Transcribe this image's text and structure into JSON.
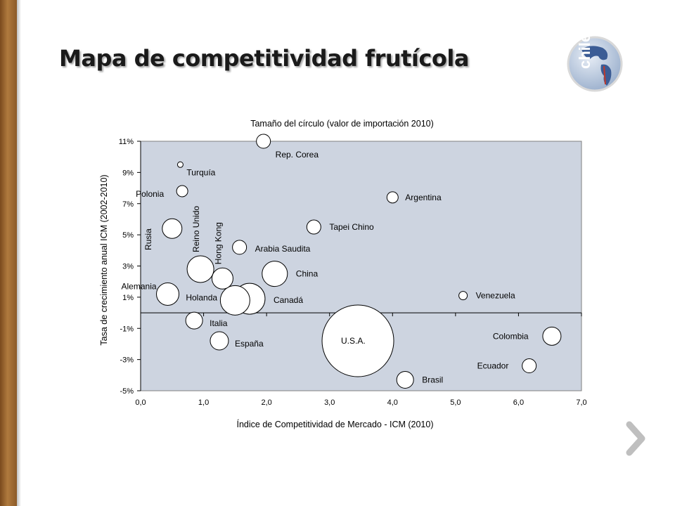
{
  "page": {
    "title": "Mapa de competitividad frutícola"
  },
  "logo": {
    "text": "chile",
    "icon": "chile-globe-logo"
  },
  "nav": {
    "next_icon": "chevron-right-icon",
    "color": "#bfbfbf"
  },
  "colors": {
    "plot_bg": "#cdd4e0",
    "bubble_fill": "#ffffff",
    "bubble_stroke": "#000000"
  },
  "chart_data": {
    "type": "scatter",
    "subtitle": "Tamaño del círculo (valor de importación 2010)",
    "xlabel": "Índice de Competitividad de Mercado - ICM (2010)",
    "ylabel": "Tasa de crecimiento anual ICM (2002-2010)",
    "xlim": [
      0,
      7
    ],
    "ylim": [
      -5,
      11
    ],
    "xticks": [
      "0,0",
      "1,0",
      "2,0",
      "3,0",
      "4,0",
      "5,0",
      "6,0",
      "7,0"
    ],
    "yticks": [
      "-5%",
      "-3%",
      "-1%",
      "1%",
      "3%",
      "5%",
      "7%",
      "9%",
      "11%"
    ],
    "points": [
      {
        "name": "Rep. Corea",
        "x": 1.95,
        "y": 11.0,
        "size": 10
      },
      {
        "name": "Turquía",
        "x": 0.63,
        "y": 9.5,
        "size": 4
      },
      {
        "name": "Polonia",
        "x": 0.66,
        "y": 7.8,
        "size": 8
      },
      {
        "name": "Argentina",
        "x": 4.0,
        "y": 7.4,
        "size": 8
      },
      {
        "name": "Rusia",
        "x": 0.5,
        "y": 5.4,
        "size": 14
      },
      {
        "name": "Tapei Chino",
        "x": 2.75,
        "y": 5.5,
        "size": 10
      },
      {
        "name": "Arabia Saudita",
        "x": 1.57,
        "y": 4.2,
        "size": 10
      },
      {
        "name": "Reino Unido",
        "x": 0.95,
        "y": 2.8,
        "size": 19
      },
      {
        "name": "Hong Kong",
        "x": 1.3,
        "y": 2.2,
        "size": 15
      },
      {
        "name": "China",
        "x": 2.13,
        "y": 2.5,
        "size": 18
      },
      {
        "name": "Alemania",
        "x": 0.43,
        "y": 1.2,
        "size": 16
      },
      {
        "name": "Holanda",
        "x": 1.5,
        "y": 0.8,
        "size": 21
      },
      {
        "name": "Canadá",
        "x": 1.73,
        "y": 0.9,
        "size": 22
      },
      {
        "name": "Venezuela",
        "x": 5.12,
        "y": 1.1,
        "size": 6
      },
      {
        "name": "Italia",
        "x": 0.85,
        "y": -0.5,
        "size": 12
      },
      {
        "name": "España",
        "x": 1.25,
        "y": -1.8,
        "size": 13
      },
      {
        "name": "U.S.A.",
        "x": 3.45,
        "y": -1.8,
        "size": 51
      },
      {
        "name": "Colombia",
        "x": 6.53,
        "y": -1.5,
        "size": 13
      },
      {
        "name": "Ecuador",
        "x": 6.17,
        "y": -3.4,
        "size": 10
      },
      {
        "name": "Brasil",
        "x": 4.2,
        "y": -4.3,
        "size": 12
      }
    ]
  }
}
